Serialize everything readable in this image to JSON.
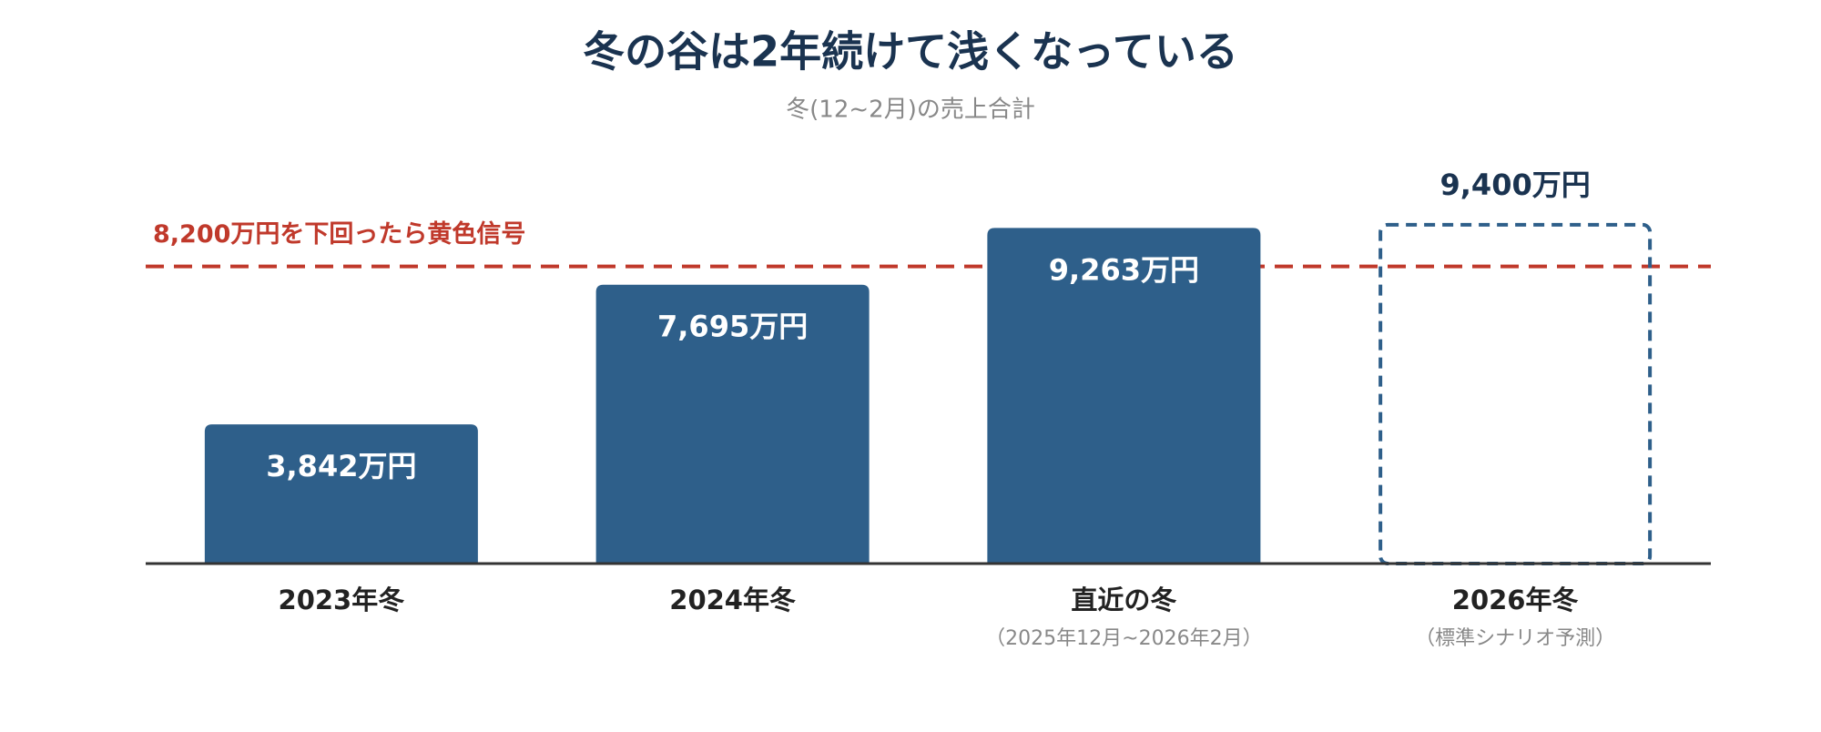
{
  "chart_data": {
    "type": "bar",
    "title": "冬の谷は2年続けて浅くなっている",
    "subtitle": "冬(12~2月)の売上合計",
    "categories": [
      "2023年冬",
      "2024年冬",
      "直近の冬",
      "2026年冬"
    ],
    "category_notes": [
      null,
      null,
      "（2025年12月~2026年2月）",
      "（標準シナリオ予測）"
    ],
    "values": [
      3842,
      7695,
      9263,
      9400
    ],
    "value_labels": [
      "3,842万円",
      "7,695万円",
      "9,263万円",
      "9,400万円"
    ],
    "bar_styles": [
      "solid",
      "solid",
      "solid",
      "dashed"
    ],
    "color": "#2e5f8a",
    "ylim": [
      0,
      10000
    ],
    "reference_line": {
      "value": 8200,
      "label": "8,200万円を下回ったら黄色信号",
      "color": "#c0392b"
    }
  }
}
